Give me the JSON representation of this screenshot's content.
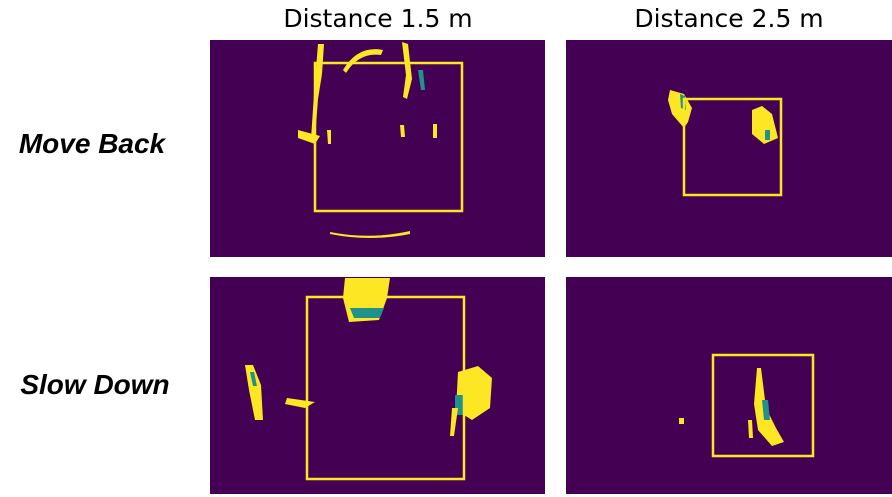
{
  "columns": [
    "Distance 1.5 m",
    "Distance 2.5 m"
  ],
  "rows": [
    "Move Back",
    "Slow Down"
  ]
}
